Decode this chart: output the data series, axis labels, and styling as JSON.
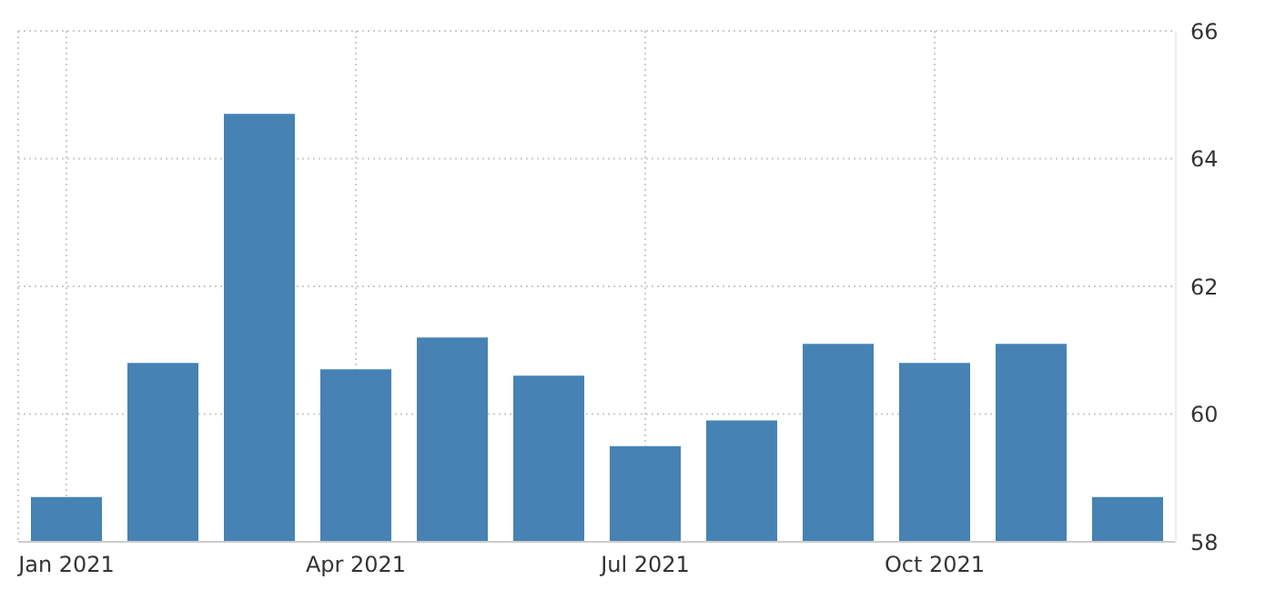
{
  "chart_data": {
    "type": "bar",
    "categories": [
      "Jan 2021",
      null,
      null,
      "Apr 2021",
      null,
      null,
      "Jul 2021",
      null,
      null,
      "Oct 2021",
      null,
      null
    ],
    "values": [
      58.7,
      60.8,
      64.7,
      60.7,
      61.2,
      60.6,
      59.5,
      59.9,
      61.1,
      60.8,
      61.1,
      58.7
    ],
    "color": "#4682b4",
    "ylim": [
      58,
      66
    ],
    "yticks": [
      58,
      60,
      62,
      64,
      66
    ],
    "grid": true
  }
}
